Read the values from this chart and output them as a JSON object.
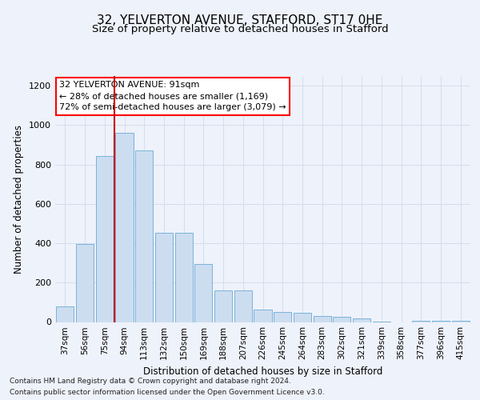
{
  "title": "32, YELVERTON AVENUE, STAFFORD, ST17 0HE",
  "subtitle": "Size of property relative to detached houses in Stafford",
  "xlabel": "Distribution of detached houses by size in Stafford",
  "ylabel": "Number of detached properties",
  "categories": [
    "37sqm",
    "56sqm",
    "75sqm",
    "94sqm",
    "113sqm",
    "132sqm",
    "150sqm",
    "169sqm",
    "188sqm",
    "207sqm",
    "226sqm",
    "245sqm",
    "264sqm",
    "283sqm",
    "302sqm",
    "321sqm",
    "339sqm",
    "358sqm",
    "377sqm",
    "396sqm",
    "415sqm"
  ],
  "values": [
    80,
    395,
    845,
    960,
    870,
    455,
    455,
    295,
    160,
    160,
    65,
    50,
    45,
    30,
    25,
    18,
    4,
    0,
    8,
    8,
    8
  ],
  "bar_color": "#ccddf0",
  "bar_edge_color": "#6aaad4",
  "red_line_color": "#cc0000",
  "red_line_index": 3,
  "annotation_line1": "32 YELVERTON AVENUE: 91sqm",
  "annotation_line2": "← 28% of detached houses are smaller (1,169)",
  "annotation_line3": "72% of semi-detached houses are larger (3,079) →",
  "annotation_box_color": "white",
  "annotation_box_edge_color": "red",
  "ylim": [
    0,
    1250
  ],
  "yticks": [
    0,
    200,
    400,
    600,
    800,
    1000,
    1200
  ],
  "grid_color": "#d5dded",
  "footer_line1": "Contains HM Land Registry data © Crown copyright and database right 2024.",
  "footer_line2": "Contains public sector information licensed under the Open Government Licence v3.0.",
  "bg_color": "#eef2fa",
  "title_fontsize": 11,
  "subtitle_fontsize": 9.5,
  "axis_label_fontsize": 8.5,
  "tick_fontsize": 7.5,
  "annotation_fontsize": 8,
  "footer_fontsize": 6.5
}
